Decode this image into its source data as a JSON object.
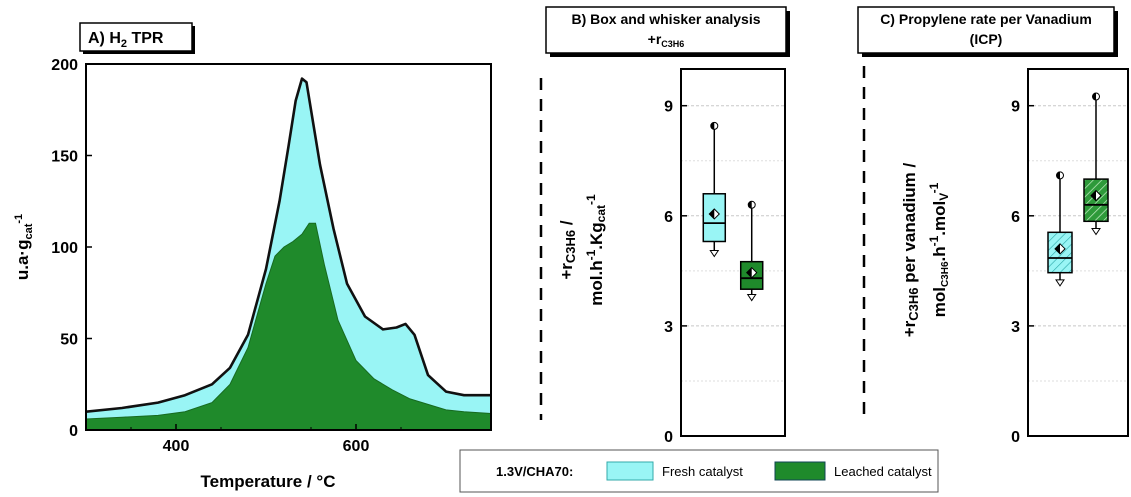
{
  "chart_data": [
    {
      "type": "area",
      "title": "A) H",
      "title_sub": "2",
      "title_rest": " TPR",
      "xlabel": "Temperature / °C",
      "ylabel": "u.a·g",
      "ylabel_sub": "cat",
      "xlim": [
        300,
        750
      ],
      "ylim": [
        0,
        200
      ],
      "xticks": [
        "400",
        "600"
      ],
      "yticks": [
        "0",
        "50",
        "100",
        "150",
        "200"
      ],
      "xtick_values": [
        400,
        600
      ],
      "ytick_values": [
        0,
        50,
        100,
        150,
        200
      ],
      "colors": {
        "fresh": "#99f5f5",
        "leached": "#1f8a2b",
        "fresh_line": "#111111"
      },
      "series": [
        {
          "name": "Fresh catalyst",
          "x": [
            300,
            340,
            380,
            410,
            440,
            460,
            480,
            500,
            515,
            525,
            533,
            540,
            545,
            550,
            560,
            575,
            590,
            610,
            630,
            645,
            655,
            665,
            680,
            700,
            720,
            750
          ],
          "y": [
            10,
            12,
            15,
            19,
            25,
            34,
            52,
            88,
            125,
            155,
            180,
            192,
            190,
            175,
            145,
            110,
            80,
            62,
            55,
            56,
            58,
            52,
            30,
            21,
            19,
            19
          ]
        },
        {
          "name": "Leached catalyst",
          "x": [
            300,
            340,
            380,
            410,
            440,
            460,
            480,
            500,
            510,
            520,
            530,
            540,
            548,
            555,
            565,
            580,
            600,
            620,
            640,
            660,
            680,
            700,
            720,
            750
          ],
          "y": [
            6,
            7,
            8,
            10,
            15,
            25,
            45,
            80,
            95,
            100,
            103,
            107,
            113,
            113,
            90,
            60,
            38,
            28,
            22,
            17,
            14,
            11,
            10,
            9
          ]
        }
      ]
    },
    {
      "type": "box",
      "title": "B) Box and whisker analysis",
      "subtitle": "+r",
      "subtitle_sub": "C3H6",
      "ylabel_line1": "+r",
      "ylabel_line1_sub": "C3H6",
      "ylabel_line1_rest": " /",
      "ylabel_line2": "mol.h",
      "ylabel_line2_sup1": "-1",
      "ylabel_line2_mid": ".Kg",
      "ylabel_line2_sub": "cat",
      "ylabel_line2_sup2": "-1",
      "ylim": [
        0,
        10
      ],
      "yticks": [
        "0",
        "3",
        "6",
        "9"
      ],
      "ytick_values": [
        0,
        3,
        6,
        9
      ],
      "minor_grid": [
        1.5,
        4.5,
        7.5
      ],
      "boxes": [
        {
          "series": "Fresh catalyst",
          "min": 5.0,
          "q1": 5.3,
          "median": 5.8,
          "q3": 6.6,
          "max": 8.45,
          "mean": 6.05
        },
        {
          "series": "Leached catalyst",
          "min": 3.8,
          "q1": 4.0,
          "median": 4.3,
          "q3": 4.75,
          "max": 6.3,
          "mean": 4.45
        }
      ]
    },
    {
      "type": "box",
      "title": "C) Propylene rate per Vanadium",
      "subtitle": "(ICP)",
      "ylabel_line1": "+r",
      "ylabel_line1_sub": "C3H6",
      "ylabel_line1_rest": " per vanadium /",
      "ylabel_line2": "mol",
      "ylabel_line2_sub": "C3H6",
      "ylabel_line2_mid": ".h",
      "ylabel_line2_sup1": "-1",
      "ylabel_line2_mid2": ".mol",
      "ylabel_line2_sub2": "V",
      "ylabel_line2_sup2": "-1",
      "ylim": [
        0,
        10
      ],
      "yticks": [
        "0",
        "3",
        "6",
        "9"
      ],
      "ytick_values": [
        0,
        3,
        6,
        9
      ],
      "minor_grid": [
        1.5,
        4.5,
        7.5
      ],
      "boxes": [
        {
          "series": "Fresh catalyst",
          "min": 4.2,
          "q1": 4.45,
          "median": 4.85,
          "q3": 5.55,
          "max": 7.1,
          "mean": 5.1
        },
        {
          "series": "Leached catalyst",
          "min": 5.6,
          "q1": 5.85,
          "median": 6.3,
          "q3": 7.0,
          "max": 9.25,
          "mean": 6.55
        }
      ]
    }
  ],
  "legend": {
    "prefix": "1.3V/CHA70:",
    "items": [
      {
        "label": "Fresh catalyst",
        "color": "#99f5f5"
      },
      {
        "label": "Leached catalyst",
        "color": "#1f8a2b"
      }
    ]
  }
}
